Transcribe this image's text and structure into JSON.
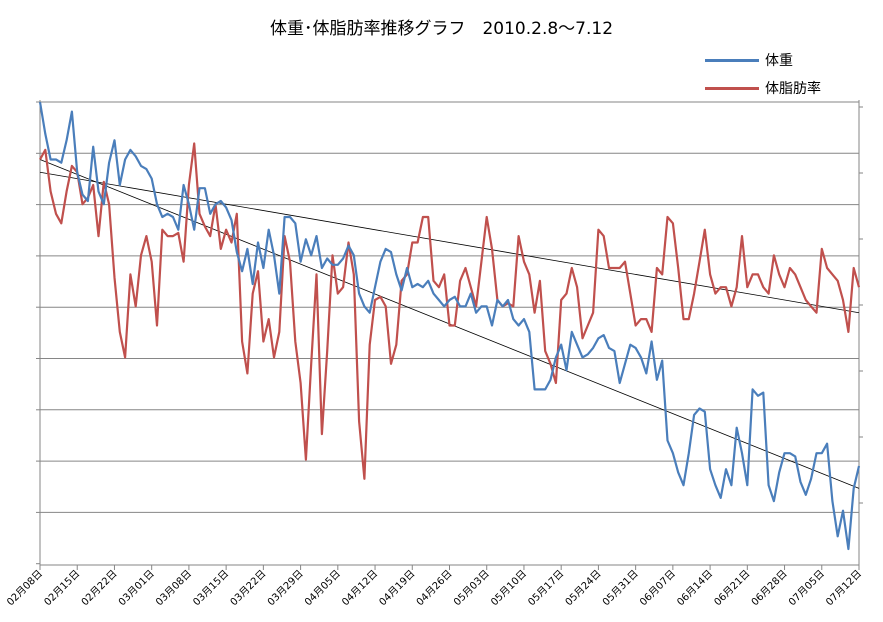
{
  "chart_data": {
    "type": "line",
    "title": "体重･体脂肪率推移グラフ　2010.2.8～7.12",
    "xlabel": "",
    "ylabel": "",
    "x_tick_labels": [
      "02月08日",
      "02月15日",
      "02月22日",
      "03月01日",
      "03月08日",
      "03月15日",
      "03月22日",
      "03月29日",
      "04月05日",
      "04月12日",
      "04月19日",
      "04月26日",
      "05月03日",
      "05月10日",
      "05月17日",
      "05月24日",
      "05月31日",
      "06月07日",
      "06月14日",
      "06月21日",
      "06月28日",
      "07月05日",
      "07月12日"
    ],
    "x_range_days": [
      0,
      154
    ],
    "grid": true,
    "legend_position": "top-right",
    "series": [
      {
        "name": "体重",
        "color": "#4a7ebb",
        "axis": "left",
        "values": [
          [
            0,
            10.0
          ],
          [
            1,
            9.0
          ],
          [
            2,
            8.2
          ],
          [
            3,
            8.2
          ],
          [
            4,
            8.1
          ],
          [
            5,
            8.8
          ],
          [
            6,
            9.7
          ],
          [
            7,
            7.8
          ],
          [
            8,
            7.1
          ],
          [
            9,
            6.9
          ],
          [
            10,
            8.6
          ],
          [
            11,
            7.2
          ],
          [
            12,
            6.8
          ],
          [
            13,
            8.1
          ],
          [
            14,
            8.8
          ],
          [
            15,
            7.4
          ],
          [
            16,
            8.2
          ],
          [
            17,
            8.5
          ],
          [
            18,
            8.3
          ],
          [
            19,
            8.0
          ],
          [
            20,
            7.9
          ],
          [
            21,
            7.6
          ],
          [
            22,
            6.8
          ],
          [
            23,
            6.4
          ],
          [
            24,
            6.5
          ],
          [
            25,
            6.4
          ],
          [
            26,
            6.0
          ],
          [
            27,
            7.4
          ],
          [
            28,
            6.8
          ],
          [
            29,
            6.0
          ],
          [
            30,
            7.3
          ],
          [
            31,
            7.3
          ],
          [
            32,
            6.5
          ],
          [
            33,
            6.8
          ],
          [
            34,
            6.9
          ],
          [
            35,
            6.7
          ],
          [
            36,
            6.3
          ],
          [
            37,
            5.3
          ],
          [
            38,
            4.7
          ],
          [
            39,
            5.4
          ],
          [
            40,
            4.3
          ],
          [
            41,
            5.6
          ],
          [
            42,
            4.8
          ],
          [
            43,
            6.0
          ],
          [
            44,
            5.2
          ],
          [
            45,
            4.0
          ],
          [
            46,
            6.4
          ],
          [
            47,
            6.4
          ],
          [
            48,
            6.2
          ],
          [
            49,
            5.0
          ],
          [
            50,
            5.7
          ],
          [
            51,
            5.2
          ],
          [
            52,
            5.8
          ],
          [
            53,
            4.8
          ],
          [
            54,
            5.1
          ],
          [
            55,
            4.9
          ],
          [
            56,
            4.9
          ],
          [
            57,
            5.1
          ],
          [
            58,
            5.5
          ],
          [
            59,
            5.2
          ],
          [
            60,
            4.0
          ],
          [
            61,
            3.6
          ],
          [
            62,
            3.4
          ],
          [
            63,
            4.2
          ],
          [
            64,
            5.0
          ],
          [
            65,
            5.4
          ],
          [
            66,
            5.3
          ],
          [
            67,
            4.6
          ],
          [
            68,
            4.1
          ],
          [
            69,
            4.8
          ],
          [
            70,
            4.2
          ],
          [
            71,
            4.3
          ],
          [
            72,
            4.2
          ],
          [
            73,
            4.4
          ],
          [
            74,
            4.0
          ],
          [
            75,
            3.8
          ],
          [
            76,
            3.6
          ],
          [
            77,
            3.8
          ],
          [
            78,
            3.9
          ],
          [
            79,
            3.6
          ],
          [
            80,
            3.6
          ],
          [
            81,
            4.0
          ],
          [
            82,
            3.4
          ],
          [
            83,
            3.6
          ],
          [
            84,
            3.6
          ],
          [
            85,
            3.0
          ],
          [
            86,
            3.8
          ],
          [
            87,
            3.6
          ],
          [
            88,
            3.8
          ],
          [
            89,
            3.2
          ],
          [
            90,
            3.0
          ],
          [
            91,
            3.2
          ],
          [
            92,
            2.8
          ],
          [
            93,
            1.0
          ],
          [
            94,
            1.0
          ],
          [
            95,
            1.0
          ],
          [
            96,
            1.3
          ],
          [
            97,
            2.0
          ],
          [
            98,
            2.4
          ],
          [
            99,
            1.6
          ],
          [
            100,
            2.8
          ],
          [
            101,
            2.4
          ],
          [
            102,
            2.0
          ],
          [
            103,
            2.1
          ],
          [
            104,
            2.3
          ],
          [
            105,
            2.6
          ],
          [
            106,
            2.7
          ],
          [
            107,
            2.3
          ],
          [
            108,
            2.2
          ],
          [
            109,
            1.2
          ],
          [
            110,
            1.8
          ],
          [
            111,
            2.4
          ],
          [
            112,
            2.3
          ],
          [
            113,
            2.0
          ],
          [
            114,
            1.5
          ],
          [
            115,
            2.5
          ],
          [
            116,
            1.3
          ],
          [
            117,
            1.9
          ],
          [
            118,
            -0.6
          ],
          [
            119,
            -1.0
          ],
          [
            120,
            -1.6
          ],
          [
            121,
            -2.0
          ],
          [
            122,
            -1.0
          ],
          [
            123,
            0.2
          ],
          [
            124,
            0.4
          ],
          [
            125,
            0.3
          ],
          [
            126,
            -1.5
          ],
          [
            127,
            -2.0
          ],
          [
            128,
            -2.4
          ],
          [
            129,
            -1.5
          ],
          [
            130,
            -2.0
          ],
          [
            131,
            -0.2
          ],
          [
            132,
            -1.0
          ],
          [
            133,
            -2.0
          ],
          [
            134,
            1.0
          ],
          [
            135,
            0.8
          ],
          [
            136,
            0.9
          ],
          [
            137,
            -2.0
          ],
          [
            138,
            -2.5
          ],
          [
            139,
            -1.6
          ],
          [
            140,
            -1.0
          ],
          [
            141,
            -1.0
          ],
          [
            142,
            -1.1
          ],
          [
            143,
            -1.9
          ],
          [
            144,
            -2.3
          ],
          [
            145,
            -1.8
          ],
          [
            146,
            -1.0
          ],
          [
            147,
            -1.0
          ],
          [
            148,
            -0.7
          ],
          [
            149,
            -2.5
          ],
          [
            150,
            -3.6
          ],
          [
            151,
            -2.8
          ],
          [
            152,
            -4.0
          ],
          [
            153,
            -2.1
          ],
          [
            154,
            -1.4
          ]
        ]
      },
      {
        "name": "体脂肪率",
        "color": "#c0504d",
        "axis": "right",
        "values": [
          [
            0,
            8.2
          ],
          [
            1,
            8.5
          ],
          [
            2,
            7.2
          ],
          [
            3,
            6.5
          ],
          [
            4,
            6.2
          ],
          [
            5,
            7.2
          ],
          [
            6,
            8.0
          ],
          [
            7,
            7.8
          ],
          [
            8,
            6.8
          ],
          [
            9,
            7.0
          ],
          [
            10,
            7.4
          ],
          [
            11,
            5.8
          ],
          [
            12,
            7.5
          ],
          [
            13,
            6.8
          ],
          [
            14,
            4.5
          ],
          [
            15,
            2.8
          ],
          [
            16,
            2.0
          ],
          [
            17,
            4.6
          ],
          [
            18,
            3.6
          ],
          [
            19,
            5.2
          ],
          [
            20,
            5.8
          ],
          [
            21,
            5.0
          ],
          [
            22,
            3.0
          ],
          [
            23,
            6.0
          ],
          [
            24,
            5.8
          ],
          [
            25,
            5.8
          ],
          [
            26,
            5.9
          ],
          [
            27,
            5.0
          ],
          [
            28,
            7.4
          ],
          [
            29,
            8.7
          ],
          [
            30,
            6.5
          ],
          [
            31,
            6.1
          ],
          [
            32,
            5.8
          ],
          [
            33,
            6.8
          ],
          [
            34,
            5.4
          ],
          [
            35,
            6.0
          ],
          [
            36,
            5.6
          ],
          [
            37,
            6.5
          ],
          [
            38,
            2.5
          ],
          [
            39,
            1.5
          ],
          [
            40,
            4.0
          ],
          [
            41,
            4.7
          ],
          [
            42,
            2.5
          ],
          [
            43,
            3.2
          ],
          [
            44,
            2.0
          ],
          [
            45,
            2.8
          ],
          [
            46,
            5.8
          ],
          [
            47,
            5.0
          ],
          [
            48,
            2.5
          ],
          [
            49,
            1.2
          ],
          [
            50,
            -1.2
          ],
          [
            51,
            1.8
          ],
          [
            52,
            4.6
          ],
          [
            53,
            -0.4
          ],
          [
            54,
            2.2
          ],
          [
            55,
            5.2
          ],
          [
            56,
            4.0
          ],
          [
            57,
            4.2
          ],
          [
            58,
            5.6
          ],
          [
            59,
            4.6
          ],
          [
            60,
            0.0
          ],
          [
            61,
            -1.8
          ],
          [
            62,
            2.4
          ],
          [
            63,
            3.8
          ],
          [
            64,
            3.9
          ],
          [
            65,
            3.6
          ],
          [
            66,
            1.8
          ],
          [
            67,
            2.4
          ],
          [
            68,
            4.4
          ],
          [
            69,
            4.6
          ],
          [
            70,
            5.6
          ],
          [
            71,
            5.6
          ],
          [
            72,
            6.4
          ],
          [
            73,
            6.4
          ],
          [
            74,
            4.4
          ],
          [
            75,
            4.2
          ],
          [
            76,
            4.6
          ],
          [
            77,
            3.0
          ],
          [
            78,
            3.0
          ],
          [
            79,
            4.4
          ],
          [
            80,
            4.8
          ],
          [
            81,
            4.2
          ],
          [
            82,
            3.6
          ],
          [
            83,
            5.0
          ],
          [
            84,
            6.4
          ],
          [
            85,
            5.4
          ],
          [
            86,
            3.8
          ],
          [
            87,
            3.6
          ],
          [
            88,
            3.7
          ],
          [
            89,
            3.6
          ],
          [
            90,
            5.8
          ],
          [
            91,
            5.0
          ],
          [
            92,
            4.6
          ],
          [
            93,
            3.4
          ],
          [
            94,
            4.4
          ],
          [
            95,
            2.2
          ],
          [
            96,
            1.8
          ],
          [
            97,
            1.2
          ],
          [
            98,
            3.8
          ],
          [
            99,
            4.0
          ],
          [
            100,
            4.8
          ],
          [
            101,
            4.2
          ],
          [
            102,
            2.6
          ],
          [
            103,
            3.0
          ],
          [
            104,
            3.4
          ],
          [
            105,
            6.0
          ],
          [
            106,
            5.8
          ],
          [
            107,
            4.8
          ],
          [
            108,
            4.8
          ],
          [
            109,
            4.8
          ],
          [
            110,
            5.0
          ],
          [
            111,
            4.0
          ],
          [
            112,
            3.0
          ],
          [
            113,
            3.2
          ],
          [
            114,
            3.2
          ],
          [
            115,
            2.8
          ],
          [
            116,
            4.8
          ],
          [
            117,
            4.6
          ],
          [
            118,
            6.4
          ],
          [
            119,
            6.2
          ],
          [
            120,
            4.8
          ],
          [
            121,
            3.2
          ],
          [
            122,
            3.2
          ],
          [
            123,
            4.0
          ],
          [
            124,
            5.0
          ],
          [
            125,
            6.0
          ],
          [
            126,
            4.6
          ],
          [
            127,
            4.0
          ],
          [
            128,
            4.2
          ],
          [
            129,
            4.2
          ],
          [
            130,
            3.6
          ],
          [
            131,
            4.2
          ],
          [
            132,
            5.8
          ],
          [
            133,
            4.2
          ],
          [
            134,
            4.6
          ],
          [
            135,
            4.6
          ],
          [
            136,
            4.2
          ],
          [
            137,
            4.0
          ],
          [
            138,
            5.2
          ],
          [
            139,
            4.6
          ],
          [
            140,
            4.2
          ],
          [
            141,
            4.8
          ],
          [
            142,
            4.6
          ],
          [
            143,
            4.2
          ],
          [
            144,
            3.8
          ],
          [
            145,
            3.6
          ],
          [
            146,
            3.4
          ],
          [
            147,
            5.4
          ],
          [
            148,
            4.8
          ],
          [
            149,
            4.6
          ],
          [
            150,
            4.4
          ],
          [
            151,
            3.8
          ],
          [
            152,
            2.8
          ],
          [
            153,
            4.8
          ],
          [
            154,
            4.2
          ]
        ]
      }
    ],
    "trendlines": [
      {
        "series": "体重",
        "color": "#000000",
        "start": [
          0,
          8.2
        ],
        "end": [
          154,
          -2.1
        ]
      },
      {
        "series": "体脂肪率",
        "color": "#000000",
        "start": [
          0,
          7.8
        ],
        "end": [
          154,
          3.4
        ]
      }
    ]
  }
}
